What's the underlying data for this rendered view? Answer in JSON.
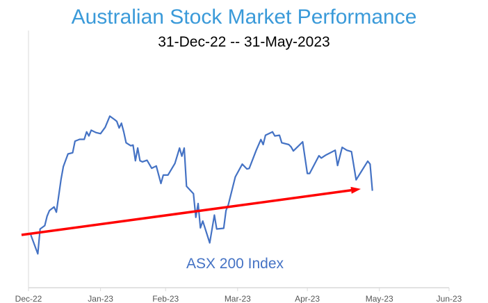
{
  "chart_data": {
    "type": "line",
    "title": "Australian Stock Market Performance",
    "subtitle": "31-Dec-22 -- 31-May-2023",
    "xlabel": "",
    "ylabel": "",
    "x_units": "days since 31-Dec-22",
    "xlim": [
      0,
      181
    ],
    "ylim": [
      6800,
      7930
    ],
    "grid": false,
    "x_ticks": [
      {
        "day": 0,
        "label": "Dec-22"
      },
      {
        "day": 31,
        "label": "Jan-23"
      },
      {
        "day": 59,
        "label": "Feb-23"
      },
      {
        "day": 90,
        "label": "Mar-23"
      },
      {
        "day": 120,
        "label": "Apr-23"
      },
      {
        "day": 151,
        "label": "May-23"
      },
      {
        "day": 181,
        "label": "Jun-23"
      }
    ],
    "series": [
      {
        "name": "ASX 200 Index",
        "color": "#4472c4",
        "x": [
          1,
          4,
          5,
          7,
          8,
          9,
          11,
          12,
          13,
          14,
          15,
          17,
          19,
          20,
          22,
          24,
          25,
          26,
          27,
          29,
          31,
          33,
          35,
          37,
          38,
          39,
          40,
          41,
          42,
          44,
          45,
          46,
          47,
          48,
          49,
          51,
          53,
          55,
          57,
          58,
          60,
          63,
          65,
          66,
          67,
          68,
          71,
          72,
          73,
          74,
          75,
          78,
          80,
          81,
          84,
          85,
          86,
          88,
          89,
          92,
          94,
          95,
          98,
          100,
          101,
          102,
          105,
          106,
          108,
          109,
          112,
          113,
          114,
          116,
          118,
          120,
          121,
          125,
          126,
          128,
          132,
          133,
          135,
          137,
          139,
          141,
          143,
          146,
          147,
          148
        ],
        "y": [
          7032,
          6949,
          7058,
          7073,
          7114,
          7139,
          7155,
          7132,
          7205,
          7276,
          7332,
          7388,
          7393,
          7444,
          7452,
          7452,
          7485,
          7467,
          7492,
          7482,
          7477,
          7505,
          7554,
          7539,
          7531,
          7502,
          7523,
          7485,
          7437,
          7424,
          7427,
          7358,
          7414,
          7358,
          7353,
          7360,
          7325,
          7335,
          7258,
          7295,
          7295,
          7346,
          7414,
          7378,
          7414,
          7246,
          7213,
          7109,
          7170,
          7063,
          7093,
          6997,
          7119,
          7058,
          7061,
          7139,
          7165,
          7246,
          7287,
          7343,
          7322,
          7324,
          7404,
          7451,
          7429,
          7470,
          7485,
          7467,
          7470,
          7437,
          7429,
          7419,
          7401,
          7421,
          7441,
          7302,
          7302,
          7380,
          7370,
          7383,
          7404,
          7337,
          7417,
          7404,
          7398,
          7274,
          7307,
          7356,
          7343,
          7226
        ]
      }
    ],
    "annotations": [
      {
        "type": "trend-arrow",
        "color": "#ff0000",
        "from": [
          -3,
          7032
        ],
        "to": [
          143,
          7234
        ]
      },
      {
        "type": "label",
        "text": "ASX 200 Index",
        "color": "#4472c4"
      }
    ]
  }
}
